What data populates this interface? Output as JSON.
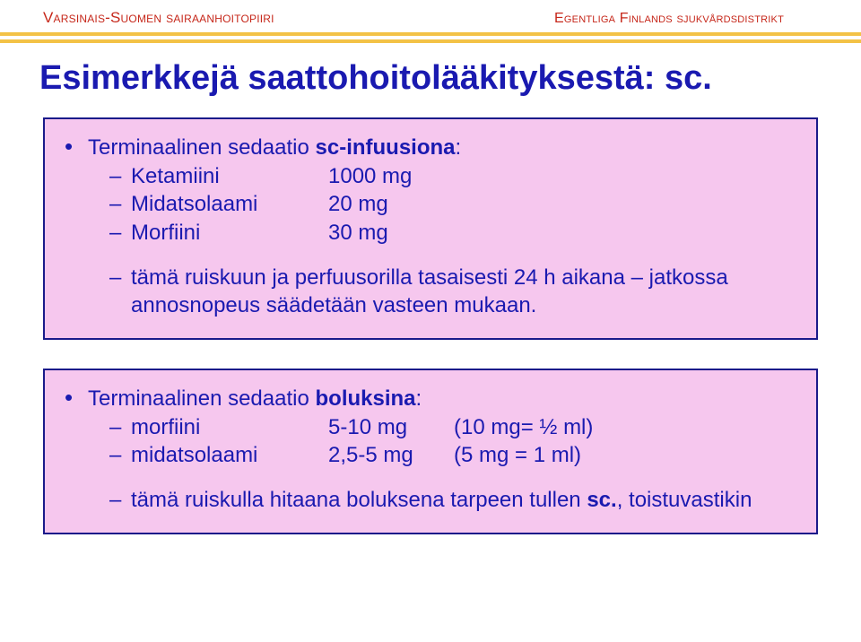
{
  "colors": {
    "header_text": "#c6271a",
    "header_bar": "#f3c246",
    "title_text": "#1a1ab0",
    "body_text": "#1a1ab0",
    "card_bg": "#f6c7ee",
    "card_border": "#1a1a8a",
    "page_bg": "#ffffff"
  },
  "header": {
    "left": "Varsinais-Suomen sairaanhoitopiiri",
    "right": "Egentliga Finlands sjukvårdsdistrikt"
  },
  "title": "Esimerkkejä saattohoitolääkityksestä: sc.",
  "card1": {
    "lead_pre": "Terminaalinen sedaatio ",
    "lead_bold": "sc-infuusiona",
    "lead_post": ":",
    "rows": [
      {
        "label": "Ketamiini",
        "value": "1000 mg"
      },
      {
        "label": "Midatsolaami",
        "value": "20 mg"
      },
      {
        "label": "Morfiini",
        "value": "30 mg"
      }
    ],
    "note": "tämä ruiskuun ja perfuusorilla tasaisesti 24 h aikana – jatkossa annosnopeus säädetään vasteen mukaan."
  },
  "card2": {
    "lead_pre": "Terminaalinen sedaatio ",
    "lead_bold": "boluksina",
    "lead_post": ":",
    "rows": [
      {
        "label": "morfiini",
        "value": "5-10 mg",
        "extra": "(10 mg= ½ ml)"
      },
      {
        "label": "midatsolaami",
        "value": "2,5-5 mg",
        "extra": "(5 mg = 1 ml)"
      }
    ],
    "note_pre": "tämä ruiskulla hitaana boluksena tarpeen tullen ",
    "note_bold": "sc.",
    "note_post": ", toistuvastikin"
  }
}
